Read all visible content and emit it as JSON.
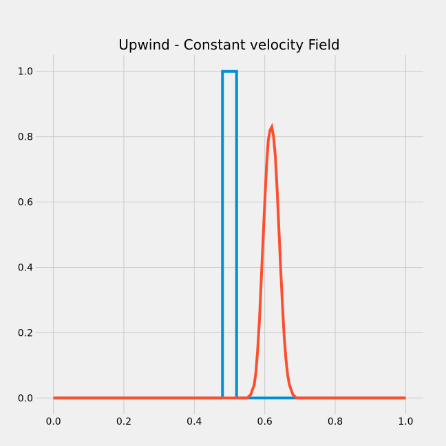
{
  "chart_data": {
    "type": "line",
    "title": "Upwind - Constant velocity Field",
    "xlabel": "",
    "ylabel": "",
    "xlim": [
      -0.05,
      1.05
    ],
    "ylim": [
      -0.05,
      1.05
    ],
    "xticks": [
      0.0,
      0.2,
      0.4,
      0.6,
      0.8,
      1.0
    ],
    "xtick_labels": [
      "0.0",
      "0.2",
      "0.4",
      "0.6",
      "0.8",
      "1.0"
    ],
    "yticks": [
      0.0,
      0.2,
      0.4,
      0.6,
      0.8,
      1.0
    ],
    "ytick_labels": [
      "0.0",
      "0.2",
      "0.4",
      "0.6",
      "0.8",
      "1.0"
    ],
    "grid": true,
    "series": [
      {
        "color": "#008fd5",
        "x": [
          0.0,
          0.48,
          0.48,
          0.52,
          0.52,
          1.0
        ],
        "y": [
          0.0,
          0.0,
          1.0,
          1.0,
          0.0,
          0.0
        ]
      },
      {
        "color": "#fc4f30",
        "x": [
          0.0,
          0.55,
          0.56,
          0.57,
          0.575,
          0.58,
          0.585,
          0.59,
          0.595,
          0.6,
          0.605,
          0.61,
          0.615,
          0.62,
          0.625,
          0.63,
          0.635,
          0.64,
          0.645,
          0.65,
          0.655,
          0.66,
          0.665,
          0.67,
          0.68,
          0.69,
          0.7,
          1.0
        ],
        "y": [
          0.0,
          0.0,
          0.01,
          0.04,
          0.08,
          0.15,
          0.24,
          0.36,
          0.48,
          0.6,
          0.71,
          0.79,
          0.82,
          0.83,
          0.8,
          0.74,
          0.64,
          0.52,
          0.4,
          0.29,
          0.19,
          0.12,
          0.07,
          0.04,
          0.01,
          0.0,
          0.0,
          0.0
        ]
      }
    ]
  }
}
